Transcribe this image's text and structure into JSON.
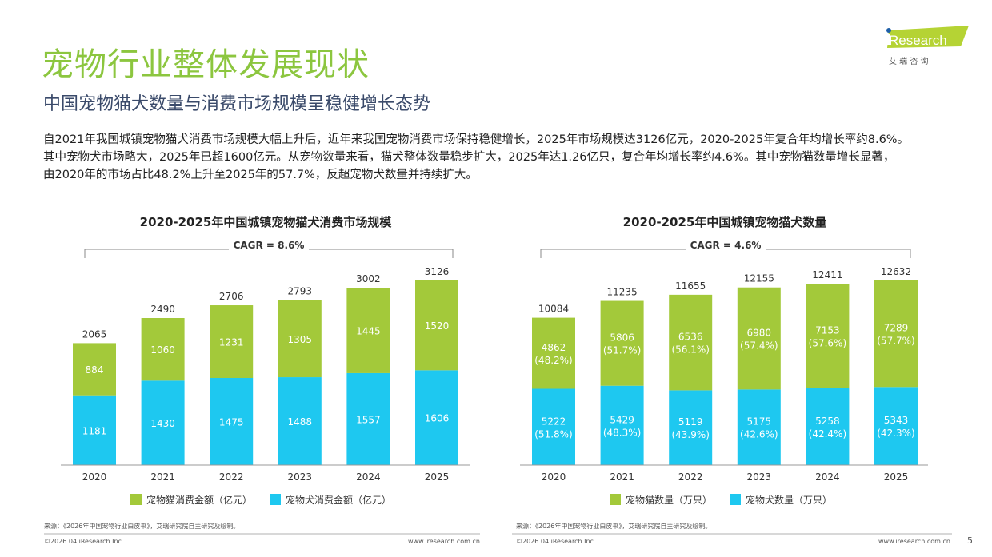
{
  "header": {
    "title": "宠物行业整体发展现状",
    "subtitle": "中国宠物猫犬数量与消费市场规模呈稳健增长态势"
  },
  "logo": {
    "brand": "iResearch",
    "cn": "艾 瑞 咨 询"
  },
  "paragraph": [
    "自2021年我国城镇宠物猫犬消费市场规模大幅上升后，近年来我国宠物消费市场保持稳健增长，2025年市场规模达3126亿元，2020-2025年复合年均增长率约8.6%。",
    "其中宠物犬市场略大，2025年已超1600亿元。从宠物数量来看，猫犬整体数量稳步扩大，2025年达1.26亿只，复合年均增长率约4.6%。其中宠物猫数量增长显著，",
    "由2020年的市场占比48.2%上升至2025年的57.7%，反超宠物犬数量并持续扩大。"
  ],
  "colors": {
    "cat": "#a3c93a",
    "dog": "#1ec8f0",
    "title": "#8cc63f"
  },
  "chart_data": [
    {
      "type": "bar",
      "stacked": true,
      "title": "2020-2025年中国城镇宠物猫犬消费市场规模",
      "annotation": "CAGR = 8.6%",
      "categories": [
        "2020",
        "2021",
        "2022",
        "2023",
        "2024",
        "2025"
      ],
      "series": [
        {
          "name": "宠物犬消费金额（亿元）",
          "values": [
            1181,
            1430,
            1475,
            1488,
            1557,
            1606
          ]
        },
        {
          "name": "宠物猫消费金额（亿元）",
          "values": [
            884,
            1060,
            1231,
            1305,
            1445,
            1520
          ]
        }
      ],
      "totals": [
        2065,
        2490,
        2706,
        2793,
        3002,
        3126
      ],
      "legend": "bottom",
      "ylim": [
        0,
        3126
      ]
    },
    {
      "type": "bar",
      "stacked": true,
      "title": "2020-2025年中国城镇宠物猫犬数量",
      "annotation": "CAGR = 4.6%",
      "categories": [
        "2020",
        "2021",
        "2022",
        "2023",
        "2024",
        "2025"
      ],
      "series": [
        {
          "name": "宠物犬数量（万只）",
          "values": [
            5222,
            5429,
            5119,
            5175,
            5258,
            5343
          ],
          "shares": [
            "(51.8%)",
            "(48.3%)",
            "(43.9%)",
            "(42.6%)",
            "(42.4%)",
            "(42.3%)"
          ]
        },
        {
          "name": "宠物猫数量（万只）",
          "values": [
            4862,
            5806,
            6536,
            6980,
            7153,
            7289
          ],
          "shares": [
            "(48.2%)",
            "(51.7%)",
            "(56.1%)",
            "(57.4%)",
            "(57.6%)",
            "(57.7%)"
          ]
        }
      ],
      "totals": [
        10084,
        11235,
        11655,
        12155,
        12411,
        12632
      ],
      "legend": "bottom",
      "ylim": [
        0,
        12632
      ]
    }
  ],
  "footer": {
    "source": "来源：《2026年中国宠物行业白皮书》，艾瑞研究院自主研究及绘制。",
    "copyright": "©2026.04 iResearch Inc.",
    "url": "www.iresearch.com.cn",
    "page": "5"
  }
}
